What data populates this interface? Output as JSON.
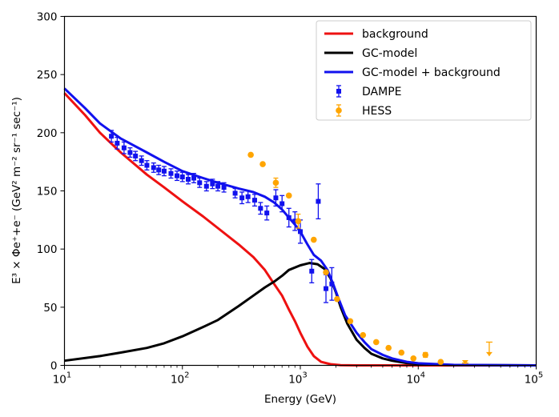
{
  "chart_data": {
    "type": "scatter",
    "xscale": "log",
    "xlim": [
      10,
      100000
    ],
    "ylim": [
      0,
      300
    ],
    "xlabel": "Energy (GeV)",
    "ylabel": "E³ × Φe⁺+e⁻ (GeV² m⁻² sr⁻¹ sec⁻¹)",
    "x_ticks": [
      {
        "value": 10,
        "base": "10",
        "exp": "1"
      },
      {
        "value": 100,
        "base": "10",
        "exp": "2"
      },
      {
        "value": 1000,
        "base": "10",
        "exp": "3"
      },
      {
        "value": 10000,
        "base": "10",
        "exp": "4"
      },
      {
        "value": 100000,
        "base": "10",
        "exp": "5"
      }
    ],
    "y_ticks": [
      0,
      50,
      100,
      150,
      200,
      250,
      300
    ],
    "legend_position": "top-right",
    "grid": false,
    "lines": [
      {
        "name": "background",
        "color": "#ee1111",
        "points": [
          [
            10,
            234
          ],
          [
            15,
            215
          ],
          [
            20,
            200
          ],
          [
            30,
            183
          ],
          [
            50,
            164
          ],
          [
            70,
            153
          ],
          [
            100,
            141
          ],
          [
            150,
            128
          ],
          [
            200,
            118
          ],
          [
            300,
            104
          ],
          [
            400,
            93
          ],
          [
            500,
            82
          ],
          [
            600,
            70
          ],
          [
            700,
            60
          ],
          [
            800,
            48
          ],
          [
            900,
            38
          ],
          [
            1000,
            28
          ],
          [
            1150,
            16
          ],
          [
            1300,
            8
          ],
          [
            1500,
            3
          ],
          [
            1800,
            1
          ],
          [
            2200,
            0.2
          ],
          [
            3000,
            0
          ],
          [
            100000,
            0
          ]
        ]
      },
      {
        "name": "GC-model",
        "color": "#000000",
        "points": [
          [
            10,
            4
          ],
          [
            20,
            8
          ],
          [
            30,
            11
          ],
          [
            50,
            15
          ],
          [
            70,
            19
          ],
          [
            100,
            25
          ],
          [
            150,
            33
          ],
          [
            200,
            39
          ],
          [
            300,
            51
          ],
          [
            400,
            60
          ],
          [
            500,
            67
          ],
          [
            600,
            72
          ],
          [
            700,
            77
          ],
          [
            800,
            82
          ],
          [
            1000,
            86
          ],
          [
            1200,
            88
          ],
          [
            1400,
            87
          ],
          [
            1600,
            83
          ],
          [
            1800,
            75
          ],
          [
            2000,
            63
          ],
          [
            2200,
            50
          ],
          [
            2500,
            36
          ],
          [
            3000,
            22
          ],
          [
            3500,
            15
          ],
          [
            4000,
            10
          ],
          [
            5000,
            6
          ],
          [
            6000,
            4
          ],
          [
            8000,
            2
          ],
          [
            10000,
            1.2
          ],
          [
            20000,
            0.3
          ],
          [
            100000,
            0
          ]
        ]
      },
      {
        "name": "GC-model + background",
        "color": "#1111ee",
        "points": [
          [
            10,
            238
          ],
          [
            15,
            221
          ],
          [
            20,
            208
          ],
          [
            30,
            195
          ],
          [
            50,
            183
          ],
          [
            70,
            175
          ],
          [
            100,
            167
          ],
          [
            150,
            161
          ],
          [
            200,
            157
          ],
          [
            300,
            152
          ],
          [
            400,
            149
          ],
          [
            500,
            145
          ],
          [
            600,
            140
          ],
          [
            700,
            134
          ],
          [
            800,
            127
          ],
          [
            900,
            121
          ],
          [
            1000,
            115
          ],
          [
            1150,
            104
          ],
          [
            1300,
            95
          ],
          [
            1500,
            90
          ],
          [
            1700,
            82
          ],
          [
            1900,
            70
          ],
          [
            2100,
            58
          ],
          [
            2400,
            43
          ],
          [
            3000,
            28
          ],
          [
            3500,
            20
          ],
          [
            4000,
            14
          ],
          [
            5000,
            9
          ],
          [
            6000,
            6
          ],
          [
            8000,
            3
          ],
          [
            10000,
            1.8
          ],
          [
            20000,
            0.4
          ],
          [
            100000,
            0
          ]
        ]
      }
    ],
    "series": [
      {
        "name": "DAMPE",
        "color": "#1111ee",
        "marker": "square",
        "points": [
          {
            "x": 25,
            "y": 197,
            "err": 5
          },
          {
            "x": 28,
            "y": 191,
            "err": 5
          },
          {
            "x": 32,
            "y": 187,
            "err": 5
          },
          {
            "x": 36,
            "y": 183,
            "err": 4
          },
          {
            "x": 40,
            "y": 180,
            "err": 4
          },
          {
            "x": 45,
            "y": 176,
            "err": 4
          },
          {
            "x": 50,
            "y": 172,
            "err": 4
          },
          {
            "x": 57,
            "y": 170,
            "err": 4
          },
          {
            "x": 63,
            "y": 168,
            "err": 4
          },
          {
            "x": 70,
            "y": 167,
            "err": 4
          },
          {
            "x": 80,
            "y": 165,
            "err": 4
          },
          {
            "x": 90,
            "y": 163,
            "err": 4
          },
          {
            "x": 100,
            "y": 162,
            "err": 4
          },
          {
            "x": 112,
            "y": 160,
            "err": 4
          },
          {
            "x": 125,
            "y": 161,
            "err": 4
          },
          {
            "x": 140,
            "y": 157,
            "err": 4
          },
          {
            "x": 160,
            "y": 154,
            "err": 4
          },
          {
            "x": 180,
            "y": 156,
            "err": 4
          },
          {
            "x": 200,
            "y": 154,
            "err": 4
          },
          {
            "x": 225,
            "y": 153,
            "err": 4
          },
          {
            "x": 280,
            "y": 148,
            "err": 4
          },
          {
            "x": 320,
            "y": 144,
            "err": 5
          },
          {
            "x": 360,
            "y": 145,
            "err": 5
          },
          {
            "x": 410,
            "y": 142,
            "err": 5
          },
          {
            "x": 460,
            "y": 135,
            "err": 5
          },
          {
            "x": 520,
            "y": 131,
            "err": 6
          },
          {
            "x": 620,
            "y": 144,
            "err": 7
          },
          {
            "x": 700,
            "y": 139,
            "err": 7
          },
          {
            "x": 800,
            "y": 127,
            "err": 8
          },
          {
            "x": 900,
            "y": 124,
            "err": 8
          },
          {
            "x": 1000,
            "y": 115,
            "err": 10
          },
          {
            "x": 1250,
            "y": 81,
            "err": 10
          },
          {
            "x": 1420,
            "y": 141,
            "err": 15
          },
          {
            "x": 1650,
            "y": 66,
            "err": 12
          },
          {
            "x": 1850,
            "y": 70,
            "err": 14
          }
        ]
      },
      {
        "name": "HESS",
        "color": "#ffa500",
        "marker": "circle",
        "points": [
          {
            "x": 380,
            "y": 181
          },
          {
            "x": 480,
            "y": 173
          },
          {
            "x": 620,
            "y": 157,
            "err": 4
          },
          {
            "x": 800,
            "y": 146
          },
          {
            "x": 960,
            "y": 124,
            "err": 6
          },
          {
            "x": 1300,
            "y": 108
          },
          {
            "x": 1650,
            "y": 80
          },
          {
            "x": 2050,
            "y": 57
          },
          {
            "x": 2650,
            "y": 38
          },
          {
            "x": 3400,
            "y": 26
          },
          {
            "x": 4400,
            "y": 20
          },
          {
            "x": 5600,
            "y": 15
          },
          {
            "x": 7200,
            "y": 11
          },
          {
            "x": 9100,
            "y": 6
          },
          {
            "x": 11500,
            "y": 9,
            "err": 2
          },
          {
            "x": 15500,
            "y": 3
          },
          {
            "x": 25000,
            "y": 2,
            "upper_limit": true
          },
          {
            "x": 40000,
            "y": 20,
            "upper_limit": true
          }
        ]
      }
    ]
  }
}
